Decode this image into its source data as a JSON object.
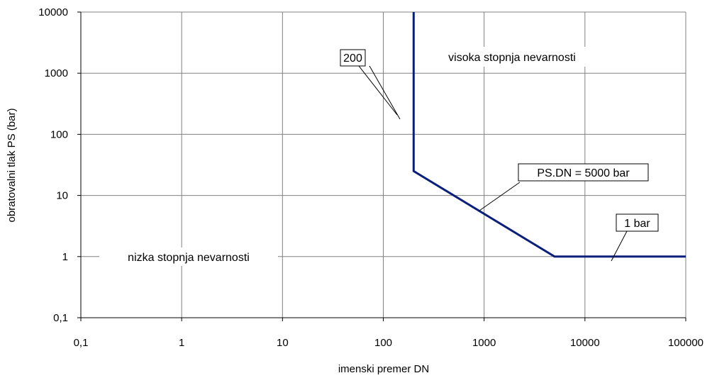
{
  "chart_data": {
    "type": "line",
    "title": "",
    "xlabel": "imenski premer DN",
    "ylabel": "obratovalni tlak PS (bar)",
    "xscale": "log",
    "yscale": "log",
    "xlim": [
      0.1,
      100000
    ],
    "ylim": [
      0.1,
      10000
    ],
    "grid": true,
    "legend": "none",
    "x_ticks": [
      "0,1",
      "1",
      "10",
      "100",
      "1000",
      "10000",
      "100000"
    ],
    "y_ticks": [
      "0,1",
      "1",
      "10",
      "100",
      "1000",
      "10000"
    ],
    "series": [
      {
        "color": "#0a1f7a",
        "x": [
          200,
          200,
          5000,
          100000
        ],
        "y": [
          10000,
          25,
          1,
          1
        ]
      }
    ],
    "annotations": {
      "dn_limit": "200",
      "product_limit": "PS.DN = 5000 bar",
      "pressure_limit": "1 bar",
      "high_hazard": "visoka stopnja nevarnosti",
      "low_hazard": "nizka stopnja nevarnosti"
    }
  }
}
